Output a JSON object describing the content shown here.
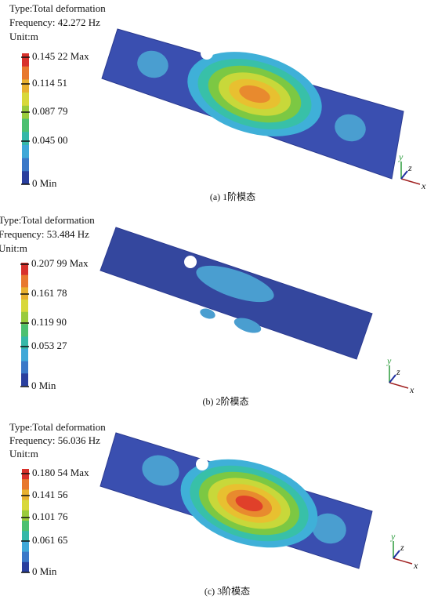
{
  "panels": [
    {
      "type": "Type:Total deformation",
      "frequency": "Frequency: 42.272 Hz",
      "unit": "Unit:m",
      "legend": [
        "0.145 22 Max",
        "0.114 51",
        "0.087 79",
        "0.045 00",
        "0 Min"
      ],
      "caption": "(a) 1阶模态"
    },
    {
      "type": "Type:Total deformation",
      "frequency": "Frequency: 53.484 Hz",
      "unit": "Unit:m",
      "legend": [
        "0.207 99 Max",
        "0.161 78",
        "0.119 90",
        "0.053 27",
        "0 Min"
      ],
      "caption": "(b) 2阶模态"
    },
    {
      "type": "Type:Total deformation",
      "frequency": "Frequency: 56.036 Hz",
      "unit": "Unit:m",
      "legend": [
        "0.180 54 Max",
        "0.141 56",
        "0.101 76",
        "0.061 65",
        "0 Min"
      ],
      "caption": "(c) 3阶模态"
    }
  ],
  "axes": {
    "x": "x",
    "y": "y",
    "z": "z"
  }
}
